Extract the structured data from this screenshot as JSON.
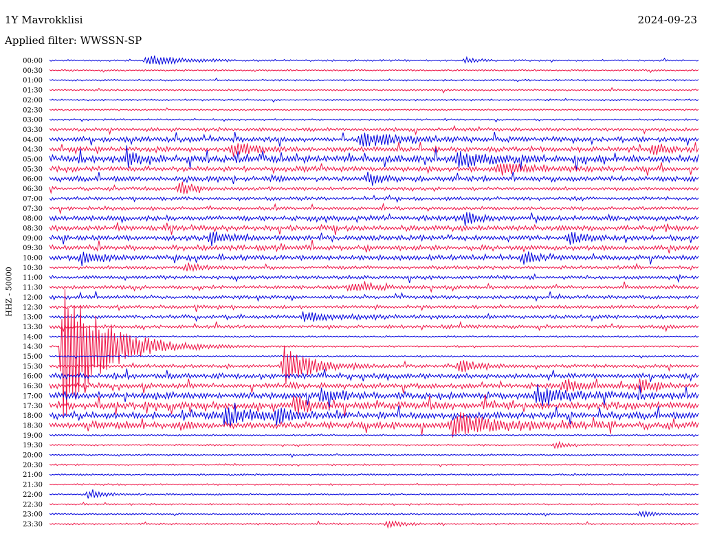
{
  "header": {
    "station": "1Y Mavrokklisi",
    "date": "2024-09-23",
    "filter_label": "Applied filter: WWSSN-SP"
  },
  "side_label": "HHZ - 50000",
  "colors": {
    "trace_a": "#0000dd",
    "trace_b": "#ee1144",
    "background": "#ffffff"
  },
  "chart_data": {
    "type": "line",
    "title": "",
    "x_axis": "continuous time within each row (30 minutes per row)",
    "row_labels": [
      "00:00",
      "00:30",
      "01:00",
      "01:30",
      "02:00",
      "02:30",
      "03:00",
      "03:30",
      "04:00",
      "04:30",
      "05:00",
      "05:30",
      "06:00",
      "06:30",
      "07:00",
      "07:30",
      "08:00",
      "08:30",
      "09:00",
      "09:30",
      "10:00",
      "10:30",
      "11:00",
      "11:30",
      "12:00",
      "12:30",
      "13:00",
      "13:30",
      "14:00",
      "14:30",
      "15:00",
      "15:30",
      "16:00",
      "16:30",
      "17:00",
      "17:30",
      "18:00",
      "18:30",
      "19:00",
      "19:30",
      "20:00",
      "20:30",
      "21:00",
      "21:30",
      "22:00",
      "22:30",
      "23:00",
      "23:30"
    ],
    "row_colors": [
      "trace_a",
      "trace_b"
    ],
    "noise_level": [
      1,
      1,
      1,
      1,
      1,
      1,
      1,
      2,
      3,
      3,
      4,
      3,
      3,
      2,
      2,
      2,
      3,
      3,
      3,
      3,
      3,
      2,
      2,
      2,
      2,
      2,
      2,
      2,
      1,
      1,
      1,
      2,
      3,
      3,
      4,
      4,
      4,
      4,
      1,
      1,
      1,
      1,
      1,
      1,
      1,
      1,
      1,
      1
    ],
    "events": [
      {
        "row": "00:00",
        "x": 0.15,
        "amp": 8,
        "width": 0.05
      },
      {
        "row": "00:00",
        "x": 0.64,
        "amp": 4,
        "width": 0.02
      },
      {
        "row": "04:00",
        "x": 0.48,
        "amp": 10,
        "width": 0.05
      },
      {
        "row": "04:30",
        "x": 0.28,
        "amp": 10,
        "width": 0.03
      },
      {
        "row": "04:30",
        "x": 0.93,
        "amp": 8,
        "width": 0.02
      },
      {
        "row": "05:00",
        "x": 0.12,
        "amp": 10,
        "width": 0.02
      },
      {
        "row": "05:00",
        "x": 0.63,
        "amp": 10,
        "width": 0.04
      },
      {
        "row": "05:30",
        "x": 0.69,
        "amp": 8,
        "width": 0.05
      },
      {
        "row": "06:00",
        "x": 0.49,
        "amp": 10,
        "width": 0.02
      },
      {
        "row": "06:30",
        "x": 0.2,
        "amp": 10,
        "width": 0.02
      },
      {
        "row": "08:00",
        "x": 0.64,
        "amp": 10,
        "width": 0.02
      },
      {
        "row": "09:00",
        "x": 0.25,
        "amp": 10,
        "width": 0.02
      },
      {
        "row": "09:00",
        "x": 0.8,
        "amp": 10,
        "width": 0.02
      },
      {
        "row": "10:00",
        "x": 0.05,
        "amp": 10,
        "width": 0.02
      },
      {
        "row": "10:00",
        "x": 0.73,
        "amp": 10,
        "width": 0.02
      },
      {
        "row": "10:30",
        "x": 0.21,
        "amp": 7,
        "width": 0.02
      },
      {
        "row": "11:30",
        "x": 0.46,
        "amp": 6,
        "width": 0.04
      },
      {
        "row": "13:00",
        "x": 0.39,
        "amp": 6,
        "width": 0.06
      },
      {
        "row": "14:30",
        "x": 0.02,
        "amp": 110,
        "width": 0.06
      },
      {
        "row": "15:30",
        "x": 0.36,
        "amp": 30,
        "width": 0.04
      },
      {
        "row": "15:30",
        "x": 0.63,
        "amp": 10,
        "width": 0.03
      },
      {
        "row": "16:30",
        "x": 0.79,
        "amp": 10,
        "width": 0.03
      },
      {
        "row": "16:30",
        "x": 0.91,
        "amp": 10,
        "width": 0.02
      },
      {
        "row": "17:00",
        "x": 0.42,
        "amp": 14,
        "width": 0.02
      },
      {
        "row": "17:00",
        "x": 0.75,
        "amp": 12,
        "width": 0.04
      },
      {
        "row": "17:30",
        "x": 0.38,
        "amp": 12,
        "width": 0.02
      },
      {
        "row": "18:00",
        "x": 0.27,
        "amp": 12,
        "width": 0.04
      },
      {
        "row": "18:00",
        "x": 0.35,
        "amp": 14,
        "width": 0.02
      },
      {
        "row": "18:30",
        "x": 0.62,
        "amp": 18,
        "width": 0.06
      },
      {
        "row": "19:30",
        "x": 0.78,
        "amp": 5,
        "width": 0.02
      },
      {
        "row": "22:00",
        "x": 0.06,
        "amp": 8,
        "width": 0.02
      },
      {
        "row": "23:00",
        "x": 0.91,
        "amp": 5,
        "width": 0.02
      },
      {
        "row": "23:30",
        "x": 0.52,
        "amp": 6,
        "width": 0.02
      }
    ]
  }
}
